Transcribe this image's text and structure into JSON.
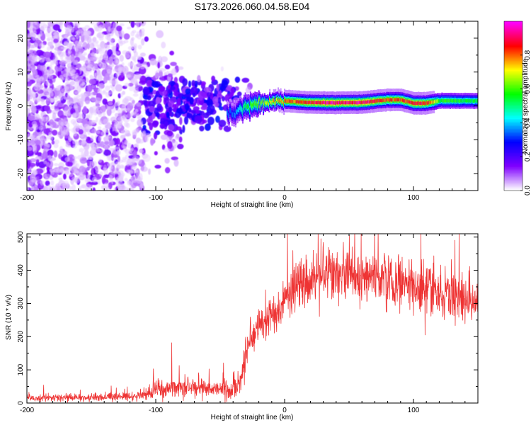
{
  "title": "S173.2026.060.04.58.E04",
  "chart_data": [
    {
      "type": "heatmap",
      "name": "spectrogram",
      "xlabel": "Height of straight line (km)",
      "ylabel": "Frequency (Hz)",
      "xlim": [
        -200,
        150
      ],
      "ylim": [
        -25,
        25
      ],
      "xticks": [
        -200,
        -100,
        0,
        100
      ],
      "xtick_labels": [
        "-200",
        "-100",
        "0",
        "100"
      ],
      "yticks": [
        -20,
        -10,
        0,
        10,
        20
      ],
      "ytick_labels": [
        "-20",
        "-10",
        "0",
        "10",
        "20"
      ],
      "colorbar": {
        "label": "Normalized spectral amplitude",
        "range": [
          0,
          1
        ],
        "ticks": [
          0.0,
          0.2,
          0.4,
          0.6,
          0.8
        ],
        "tick_labels": [
          "0.0",
          "0.2",
          "0.4",
          "0.6",
          "0.8"
        ],
        "colormap": [
          "#ffffff",
          "#7f00ff",
          "#0000ff",
          "#00ffff",
          "#00ff00",
          "#ffff00",
          "#ff0000",
          "#ff00ff"
        ]
      },
      "ridge": {
        "x": [
          -40,
          -35,
          -30,
          -20,
          -10,
          0,
          10,
          20,
          40,
          60,
          80,
          90,
          100,
          110,
          120,
          150
        ],
        "frequency": [
          -2,
          -1,
          0,
          0.5,
          1,
          1.5,
          1.2,
          1.0,
          0.9,
          1.0,
          1.8,
          1.8,
          0.8,
          0.8,
          1.5,
          1.5
        ],
        "amplitude": [
          0.35,
          0.45,
          0.55,
          0.65,
          0.75,
          0.8,
          0.85,
          0.9,
          0.95,
          0.95,
          0.85,
          0.85,
          0.9,
          0.9,
          0.6,
          0.55
        ]
      }
    },
    {
      "type": "line",
      "name": "snr",
      "xlabel": "Height of straight line (km)",
      "ylabel": "SNR (10 * v/v)",
      "xlim": [
        -200,
        150
      ],
      "ylim": [
        0,
        510
      ],
      "xticks": [
        -200,
        -100,
        0,
        100
      ],
      "xtick_labels": [
        "-200",
        "-100",
        "0",
        "100"
      ],
      "yticks": [
        0,
        100,
        200,
        300,
        400,
        500
      ],
      "ytick_labels": [
        "0",
        "100",
        "200",
        "300",
        "400",
        "500"
      ],
      "color": "#ee3333",
      "series": [
        {
          "name": "SNR",
          "x": [
            -200,
            -180,
            -160,
            -140,
            -120,
            -110,
            -100,
            -90,
            -80,
            -70,
            -60,
            -50,
            -40,
            -35,
            -30,
            -27,
            -25,
            -20,
            -15,
            -10,
            -5,
            0,
            5,
            10,
            15,
            20,
            30,
            40,
            50,
            60,
            70,
            80,
            90,
            100,
            110,
            120,
            130,
            140,
            150
          ],
          "values": [
            15,
            15,
            16,
            18,
            20,
            25,
            35,
            45,
            50,
            50,
            45,
            40,
            40,
            50,
            150,
            190,
            200,
            230,
            250,
            260,
            280,
            310,
            330,
            350,
            360,
            370,
            390,
            395,
            390,
            380,
            375,
            370,
            365,
            350,
            345,
            335,
            320,
            310,
            300
          ]
        }
      ]
    }
  ]
}
